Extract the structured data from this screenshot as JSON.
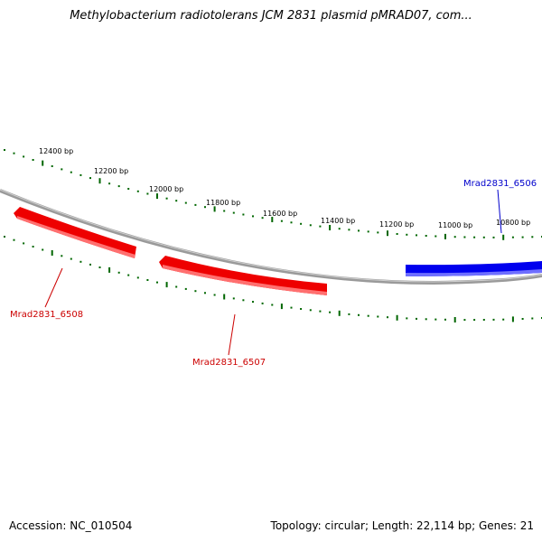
{
  "title": "Methylobacterium radiotolerans JCM 2831 plasmid pMRAD07, com...",
  "accession": "Accession: NC_010504",
  "summary": "Topology: circular; Length: 22,114 bp; Genes: 21",
  "colors": {
    "backbone": "#888888",
    "forward_gene": "#0000ff",
    "reverse_gene": "#ff0000",
    "ticks": "#006600",
    "forward_label": "#0000cc",
    "reverse_label": "#cc0000"
  },
  "ticks": {
    "labels": [
      "12400 bp",
      "12200 bp",
      "12000 bp",
      "11800 bp",
      "11600 bp",
      "11400 bp",
      "11200 bp",
      "11000 bp",
      "10800 bp"
    ]
  },
  "genes": [
    {
      "name": "Mrad2831_6506",
      "strand": "forward"
    },
    {
      "name": "Mrad2831_6507",
      "strand": "reverse"
    },
    {
      "name": "Mrad2831_6508",
      "strand": "reverse"
    }
  ]
}
